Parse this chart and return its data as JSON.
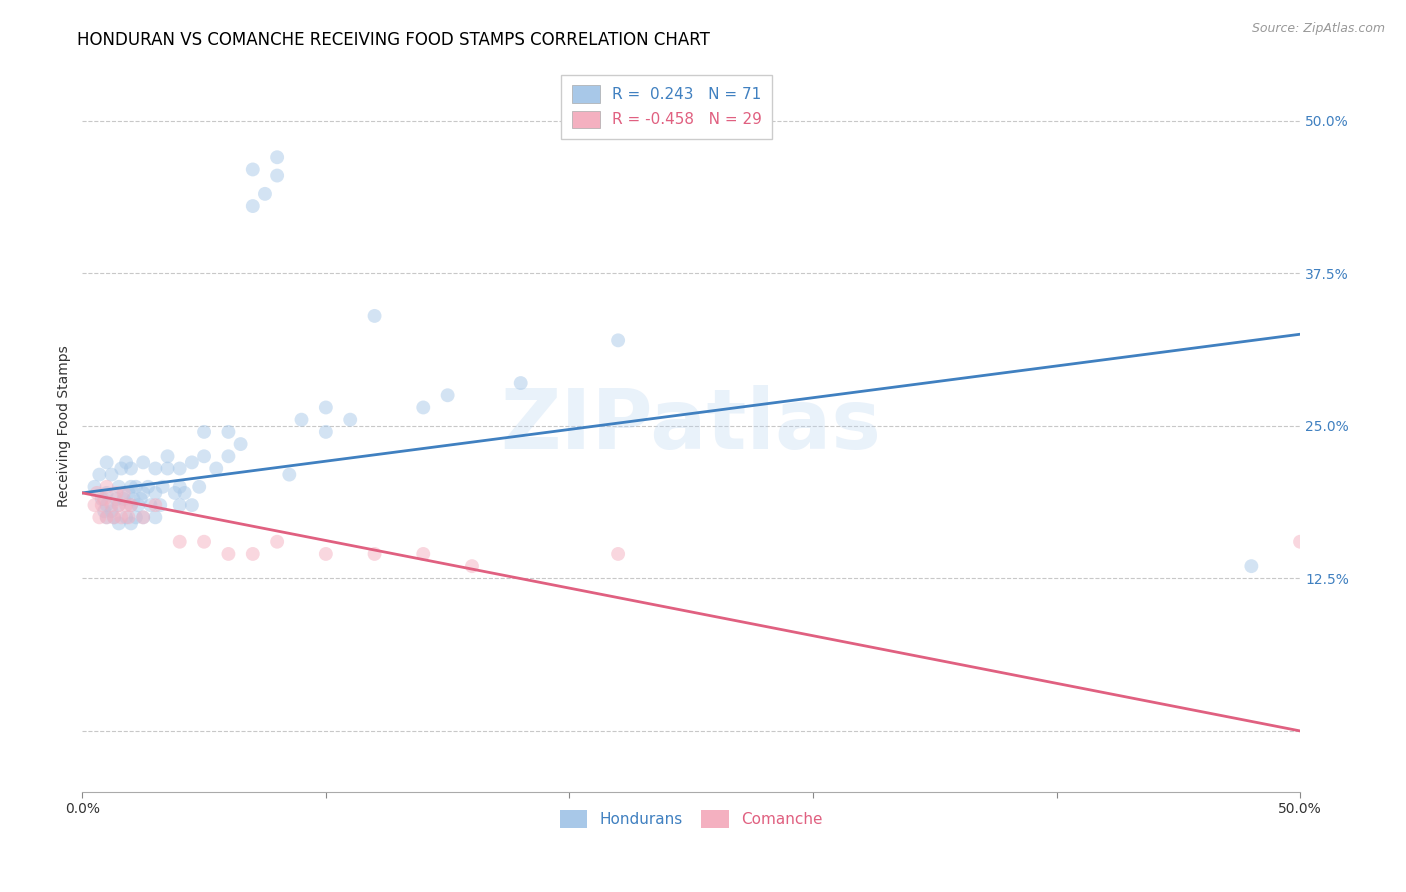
{
  "title": "HONDURAN VS COMANCHE RECEIVING FOOD STAMPS CORRELATION CHART",
  "source": "Source: ZipAtlas.com",
  "ylabel": "Receiving Food Stamps",
  "xlim": [
    0.0,
    0.5
  ],
  "ylim": [
    -0.05,
    0.55
  ],
  "yticks": [
    0.0,
    0.125,
    0.25,
    0.375,
    0.5
  ],
  "ytick_labels": [
    "",
    "12.5%",
    "25.0%",
    "37.5%",
    "50.0%"
  ],
  "legend_r1": "R =  0.243   N = 71",
  "legend_r2": "R = -0.458   N = 29",
  "watermark": "ZIPatlas",
  "blue_color": "#a8c8e8",
  "pink_color": "#f4b0c0",
  "blue_line_color": "#4080c0",
  "pink_line_color": "#e06080",
  "honduran_x": [
    0.005,
    0.007,
    0.008,
    0.009,
    0.01,
    0.01,
    0.01,
    0.01,
    0.012,
    0.012,
    0.013,
    0.014,
    0.015,
    0.015,
    0.015,
    0.016,
    0.017,
    0.018,
    0.018,
    0.019,
    0.02,
    0.02,
    0.02,
    0.02,
    0.021,
    0.022,
    0.022,
    0.023,
    0.024,
    0.025,
    0.025,
    0.025,
    0.027,
    0.028,
    0.03,
    0.03,
    0.03,
    0.032,
    0.033,
    0.035,
    0.035,
    0.038,
    0.04,
    0.04,
    0.04,
    0.042,
    0.045,
    0.045,
    0.048,
    0.05,
    0.05,
    0.055,
    0.06,
    0.06,
    0.065,
    0.07,
    0.07,
    0.075,
    0.08,
    0.08,
    0.085,
    0.09,
    0.1,
    0.1,
    0.11,
    0.12,
    0.14,
    0.15,
    0.18,
    0.22,
    0.48
  ],
  "honduran_y": [
    0.2,
    0.21,
    0.19,
    0.18,
    0.175,
    0.185,
    0.195,
    0.22,
    0.18,
    0.21,
    0.175,
    0.19,
    0.17,
    0.185,
    0.2,
    0.215,
    0.19,
    0.175,
    0.22,
    0.195,
    0.17,
    0.185,
    0.2,
    0.215,
    0.19,
    0.175,
    0.2,
    0.185,
    0.19,
    0.175,
    0.195,
    0.22,
    0.2,
    0.185,
    0.175,
    0.195,
    0.215,
    0.185,
    0.2,
    0.215,
    0.225,
    0.195,
    0.185,
    0.2,
    0.215,
    0.195,
    0.185,
    0.22,
    0.2,
    0.225,
    0.245,
    0.215,
    0.225,
    0.245,
    0.235,
    0.43,
    0.46,
    0.44,
    0.47,
    0.455,
    0.21,
    0.255,
    0.245,
    0.265,
    0.255,
    0.34,
    0.265,
    0.275,
    0.285,
    0.32,
    0.135
  ],
  "comanche_x": [
    0.005,
    0.006,
    0.007,
    0.008,
    0.009,
    0.01,
    0.01,
    0.012,
    0.013,
    0.014,
    0.015,
    0.016,
    0.017,
    0.018,
    0.019,
    0.02,
    0.025,
    0.03,
    0.04,
    0.05,
    0.06,
    0.07,
    0.08,
    0.1,
    0.12,
    0.14,
    0.16,
    0.22,
    0.5
  ],
  "comanche_y": [
    0.185,
    0.195,
    0.175,
    0.185,
    0.19,
    0.175,
    0.2,
    0.185,
    0.175,
    0.195,
    0.185,
    0.175,
    0.195,
    0.185,
    0.175,
    0.185,
    0.175,
    0.185,
    0.155,
    0.155,
    0.145,
    0.145,
    0.155,
    0.145,
    0.145,
    0.145,
    0.135,
    0.145,
    0.155
  ],
  "blue_trendline_x": [
    0.0,
    0.5
  ],
  "blue_trendline_y": [
    0.195,
    0.325
  ],
  "pink_trendline_x": [
    0.0,
    0.5
  ],
  "pink_trendline_y": [
    0.195,
    0.0
  ],
  "background_color": "#ffffff",
  "grid_color": "#c8c8c8",
  "title_fontsize": 12,
  "axis_label_fontsize": 10,
  "tick_fontsize": 10,
  "marker_size": 100,
  "marker_alpha": 0.5
}
